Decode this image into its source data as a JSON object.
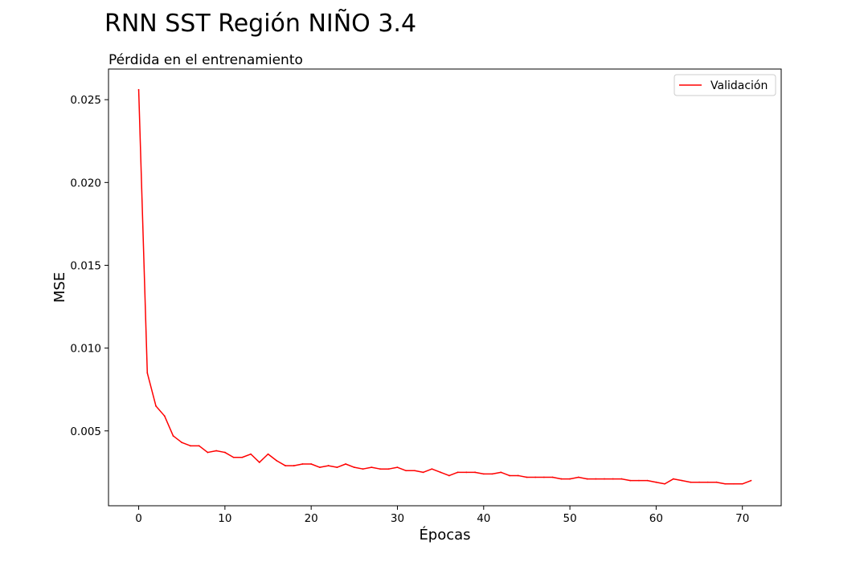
{
  "figure": {
    "suptitle": "RNN SST Región NIÑO 3.4"
  },
  "chart_data": {
    "type": "line",
    "title": "Pérdida en el entrenamiento",
    "xlabel": "Épocas",
    "ylabel": "MSE",
    "xlim": [
      -3.5,
      74.5
    ],
    "ylim": [
      0.00048,
      0.02685
    ],
    "xticks": [
      0,
      10,
      20,
      30,
      40,
      50,
      60,
      70
    ],
    "yticks": [
      0.005,
      0.01,
      0.015,
      0.02,
      0.025
    ],
    "ytick_labels": [
      "0.005",
      "0.010",
      "0.015",
      "0.020",
      "0.025"
    ],
    "grid": false,
    "legend": {
      "position": "top-right"
    },
    "series": [
      {
        "name": "Validación",
        "color": "#ff0000",
        "x": [
          0,
          1,
          2,
          3,
          4,
          5,
          6,
          7,
          8,
          9,
          10,
          11,
          12,
          13,
          14,
          15,
          16,
          17,
          18,
          19,
          20,
          21,
          22,
          23,
          24,
          25,
          26,
          27,
          28,
          29,
          30,
          31,
          32,
          33,
          34,
          35,
          36,
          37,
          38,
          39,
          40,
          41,
          42,
          43,
          44,
          45,
          46,
          47,
          48,
          49,
          50,
          51,
          52,
          53,
          54,
          55,
          56,
          57,
          58,
          59,
          60,
          61,
          62,
          63,
          64,
          65,
          66,
          67,
          68,
          69,
          70,
          71
        ],
        "values": [
          0.0256,
          0.0085,
          0.0065,
          0.0059,
          0.0047,
          0.0043,
          0.0041,
          0.0041,
          0.0037,
          0.0038,
          0.0037,
          0.0034,
          0.0034,
          0.0036,
          0.0031,
          0.0036,
          0.0032,
          0.0029,
          0.0029,
          0.003,
          0.003,
          0.0028,
          0.0029,
          0.0028,
          0.003,
          0.0028,
          0.0027,
          0.0028,
          0.0027,
          0.0027,
          0.0028,
          0.0026,
          0.0026,
          0.0025,
          0.0027,
          0.0025,
          0.0023,
          0.0025,
          0.0025,
          0.0025,
          0.0024,
          0.0024,
          0.0025,
          0.0023,
          0.0023,
          0.0022,
          0.0022,
          0.0022,
          0.0022,
          0.0021,
          0.0021,
          0.0022,
          0.0021,
          0.0021,
          0.0021,
          0.0021,
          0.0021,
          0.002,
          0.002,
          0.002,
          0.0019,
          0.0018,
          0.0021,
          0.002,
          0.0019,
          0.0019,
          0.0019,
          0.0019,
          0.0018,
          0.0018,
          0.0018,
          0.002
        ]
      }
    ]
  }
}
